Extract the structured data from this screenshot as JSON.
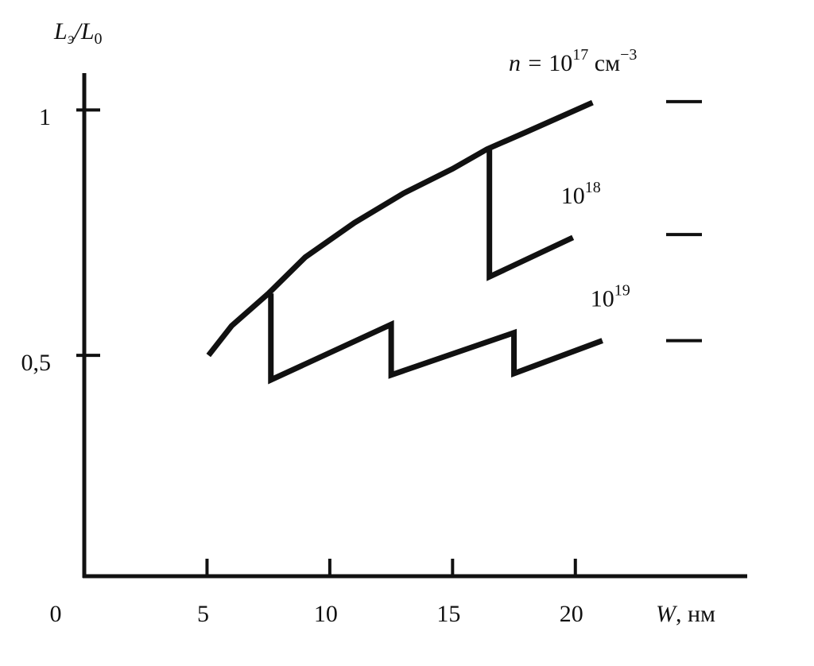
{
  "chart_data": {
    "type": "line",
    "y_label": {
      "main": "L",
      "sub1": "э",
      "mid": "/L",
      "sub2": "0"
    },
    "x_label": {
      "var": "W",
      "unit": ", нм"
    },
    "xlim": [
      0,
      27
    ],
    "ylim": [
      0.05,
      1.075
    ],
    "xticks": [
      0,
      5,
      10,
      15,
      20
    ],
    "yticks": [
      {
        "value": 0.5,
        "label": "0,5"
      },
      1
    ],
    "color": "#111111",
    "series": [
      {
        "name": "10",
        "exponent": "17",
        "prefix": "n = ",
        "unit": " см",
        "unit_exponent": "−3",
        "x": [
          5.06,
          6,
          7.5,
          9,
          11,
          13,
          15,
          16.4,
          18,
          20.7
        ],
        "values": [
          0.5,
          0.56,
          0.626,
          0.7,
          0.77,
          0.83,
          0.88,
          0.92,
          0.955,
          1.015
        ]
      },
      {
        "name": "10",
        "exponent": "18",
        "x": [
          16.5,
          16.5,
          19.9
        ],
        "values": [
          0.92,
          0.66,
          0.74
        ]
      },
      {
        "name": "10",
        "exponent": "19",
        "x": [
          7.6,
          7.6,
          12.5,
          12.5,
          17.5,
          17.5,
          21.1
        ],
        "values": [
          0.626,
          0.45,
          0.563,
          0.46,
          0.546,
          0.463,
          0.53
        ]
      }
    ],
    "limit_values": [
      1.017,
      0.746,
      0.53
    ]
  }
}
